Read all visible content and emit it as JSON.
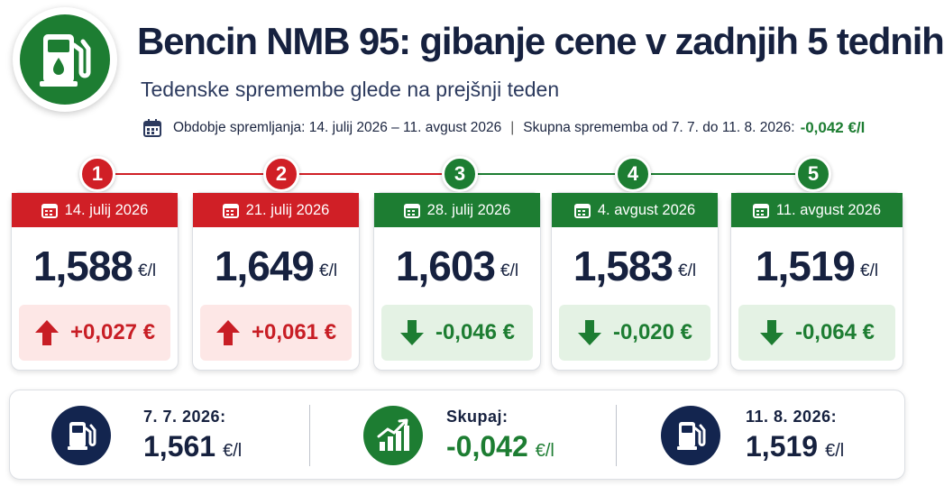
{
  "header": {
    "title": "Bencin NMB 95: gibanje cene v zadnjih 5 tednih",
    "subtitle": "Tedenske spremembe glede na prejšnji teden",
    "period_label": "Obdobje spremljanja: 14. julij 2026 – 11. avgust 2026",
    "separator": "|",
    "total_label": "Skupna sprememba od 7. 7. do 11. 8. 2026:",
    "total_value": "-0,042 €/l"
  },
  "colors": {
    "up": "#d01f26",
    "down": "#1d7d32",
    "navy": "#13254f"
  },
  "weeks": [
    {
      "step": "1",
      "date": "14. julij 2026",
      "price": "1,588",
      "unit": "€/l",
      "change": "+0,027 €",
      "direction": "up"
    },
    {
      "step": "2",
      "date": "21. julij 2026",
      "price": "1,649",
      "unit": "€/l",
      "change": "+0,061 €",
      "direction": "up"
    },
    {
      "step": "3",
      "date": "28. julij 2026",
      "price": "1,603",
      "unit": "€/l",
      "change": "-0,046 €",
      "direction": "down"
    },
    {
      "step": "4",
      "date": "4. avgust 2026",
      "price": "1,583",
      "unit": "€/l",
      "change": "-0,020 €",
      "direction": "down"
    },
    {
      "step": "5",
      "date": "11. avgust 2026",
      "price": "1,519",
      "unit": "€/l",
      "change": "-0,064 €",
      "direction": "down"
    }
  ],
  "summary": {
    "start": {
      "label": "7. 7. 2026:",
      "value": "1,561",
      "unit": "€/l",
      "icon": "fuel-pump-icon"
    },
    "total": {
      "label": "Skupaj:",
      "value": "-0,042",
      "unit": "€/l",
      "icon": "chart-up-icon"
    },
    "end": {
      "label": "11. 8. 2026:",
      "value": "1,519",
      "unit": "€/l",
      "icon": "fuel-pump-icon"
    }
  }
}
